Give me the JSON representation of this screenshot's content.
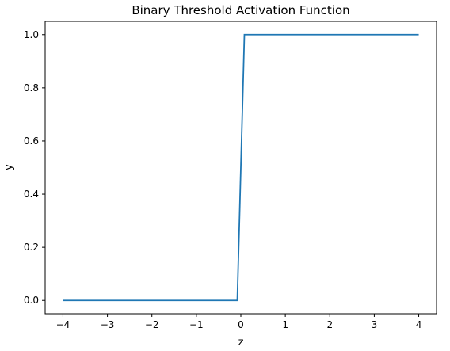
{
  "chart_data": {
    "type": "line",
    "title": "Binary Threshold Activation Function",
    "xlabel": "z",
    "ylabel": "y",
    "xlim": [
      -4.4,
      4.4
    ],
    "ylim": [
      -0.05,
      1.05
    ],
    "xticks": [
      -4,
      -3,
      -2,
      -1,
      0,
      1,
      2,
      3,
      4
    ],
    "xtick_labels": [
      "−4",
      "−3",
      "−2",
      "−1",
      "0",
      "1",
      "2",
      "3",
      "4"
    ],
    "yticks": [
      0.0,
      0.2,
      0.4,
      0.6,
      0.8,
      1.0
    ],
    "ytick_labels": [
      "0.0",
      "0.2",
      "0.4",
      "0.6",
      "0.8",
      "1.0"
    ],
    "grid": false,
    "series": [
      {
        "color": "#1f77b4",
        "x": [
          -4,
          -0.08,
          0.08,
          4
        ],
        "y": [
          0,
          0,
          1,
          1
        ]
      }
    ]
  }
}
